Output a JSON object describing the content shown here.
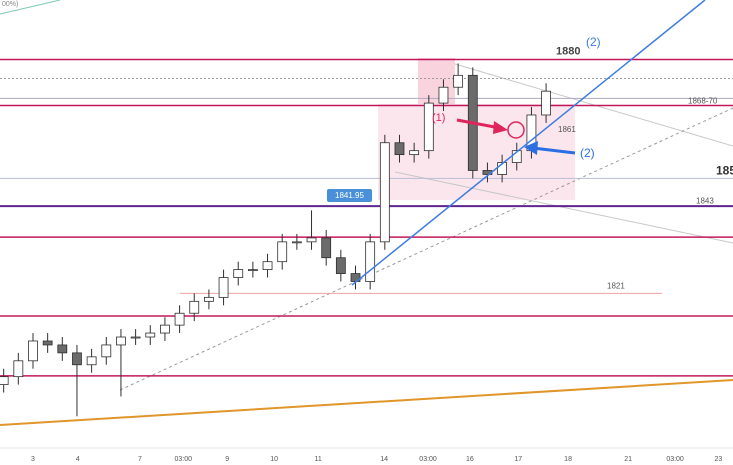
{
  "chart_data": {
    "type": "candlestick",
    "corner_text": "00%)",
    "x": [
      0.5,
      2.5,
      4.5,
      6.5,
      8.5,
      10.5,
      12.5,
      14.5,
      16.5,
      18.5,
      20.5,
      22.5,
      24.5,
      26.5,
      28.5,
      30.5,
      32.5,
      34.5,
      36.5,
      38.5,
      40.5,
      42.5,
      44.5,
      46.5,
      48.5,
      50.5,
      52.5,
      54.5,
      56.5,
      58.5,
      60.5,
      62.5,
      64.5,
      66.5,
      68.5,
      70.5,
      72.5,
      74.5
    ],
    "open": [
      1798,
      1800,
      1804,
      1809,
      1808,
      1806,
      1803,
      1805,
      1808,
      1810,
      1810,
      1811,
      1813,
      1816,
      1819,
      1820,
      1825,
      1827,
      1827,
      1829,
      1834,
      1834,
      1835,
      1830,
      1826,
      1824,
      1834,
      1859,
      1856,
      1857,
      1869,
      1873,
      1876,
      1852,
      1851,
      1854,
      1857,
      1866
    ],
    "high": [
      1802,
      1806,
      1811,
      1811,
      1810,
      1808,
      1807,
      1810,
      1812,
      1812,
      1813,
      1815,
      1818,
      1821,
      1822,
      1827,
      1829,
      1829,
      1831,
      1836,
      1836,
      1841.95,
      1837,
      1832,
      1828,
      1836,
      1861,
      1861,
      1859,
      1871,
      1875,
      1879,
      1878,
      1854,
      1856,
      1859,
      1868,
      1874
    ],
    "low": [
      1796,
      1798,
      1802,
      1806,
      1804,
      1790,
      1801,
      1803,
      1795,
      1808,
      1808,
      1809,
      1811,
      1814,
      1817,
      1818,
      1823,
      1825,
      1825,
      1827,
      1832,
      1832,
      1828,
      1824,
      1822,
      1822,
      1832,
      1854,
      1854,
      1855,
      1867,
      1871,
      1850,
      1849,
      1849,
      1852,
      1855,
      1864
    ],
    "close": [
      1800,
      1804,
      1809,
      1808,
      1806,
      1803,
      1805,
      1808,
      1810,
      1810,
      1811,
      1813,
      1816,
      1819,
      1820,
      1825,
      1827,
      1827,
      1829,
      1834,
      1834,
      1835,
      1830,
      1826,
      1824,
      1834,
      1859,
      1856,
      1857,
      1869,
      1873,
      1876,
      1852,
      1851,
      1854,
      1857,
      1866,
      1872
    ],
    "up_color": "#ffffff",
    "down_color": "#6b6b6b",
    "outline_color": "#2f2f2f",
    "xlim": [
      0,
      100
    ],
    "ylim": [
      1781,
      1895
    ],
    "xticks": [
      {
        "value": 4.5,
        "label": "3"
      },
      {
        "value": 10.6,
        "label": "4"
      },
      {
        "value": 19.1,
        "label": "7"
      },
      {
        "value": 25,
        "label": "03:00"
      },
      {
        "value": 31,
        "label": "9"
      },
      {
        "value": 37.4,
        "label": "10"
      },
      {
        "value": 43.4,
        "label": "11"
      },
      {
        "value": 52.4,
        "label": "14"
      },
      {
        "value": 58.4,
        "label": "03:00"
      },
      {
        "value": 64.1,
        "label": "16"
      },
      {
        "value": 70.7,
        "label": "17"
      },
      {
        "value": 77.5,
        "label": "18"
      },
      {
        "value": 85.7,
        "label": "21"
      },
      {
        "value": 92.1,
        "label": "03:00"
      },
      {
        "value": 98,
        "label": "23"
      }
    ],
    "levels": [
      {
        "value": 1880,
        "label": "1880",
        "color": "#c2185b"
      },
      {
        "value": 1875.2,
        "color": "#9e9e9e"
      },
      {
        "value": 1870.2,
        "color": "#b0a8c0"
      },
      {
        "value": 1868.4,
        "label": "1868-70",
        "color": "#c2185b"
      },
      {
        "value": 1850,
        "label": "185",
        "color": "#b8bfd6"
      },
      {
        "value": 1843,
        "label": "1843",
        "color": "#5e2590"
      },
      {
        "value": 1835.2,
        "color": "#c2185b"
      },
      {
        "value": 1821,
        "label": "1821",
        "color": "#f2a0a0"
      },
      {
        "value": 1815.3,
        "color": "#c2185b"
      },
      {
        "value": 1800.2,
        "color": "#c2185b"
      }
    ],
    "annotations": {
      "top_marker": "(2)",
      "marker_1": "(1)",
      "marker_2": "(2)",
      "box_label": "1861"
    }
  }
}
